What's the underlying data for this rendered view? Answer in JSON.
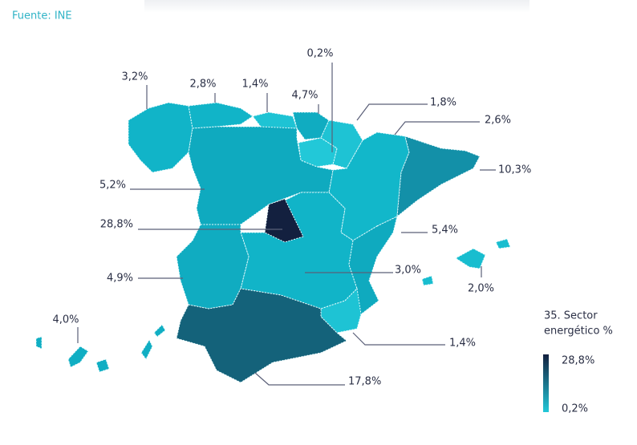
{
  "source": "Fuente: INE",
  "regions": [
    {
      "label": "3,2%",
      "color": "#11b4c8"
    },
    {
      "label": "2,8%",
      "color": "#11b4c8"
    },
    {
      "label": "1,4%",
      "color": "#1ec3d4"
    },
    {
      "label": "4,7%",
      "color": "#10acc1"
    },
    {
      "label": "0,2%",
      "color": "#22c8d8"
    },
    {
      "label": "1,8%",
      "color": "#1ec3d4"
    },
    {
      "label": "2,6%",
      "color": "#12b7ca"
    },
    {
      "label": "10,3%",
      "color": "#1390a8"
    },
    {
      "label": "5,2%",
      "color": "#0faabf"
    },
    {
      "label": "28,8%",
      "color": "#13203f"
    },
    {
      "label": "5,4%",
      "color": "#0faabf"
    },
    {
      "label": "3,0%",
      "color": "#11b4c8"
    },
    {
      "label": "2,0%",
      "color": "#18bdcf"
    },
    {
      "label": "4,9%",
      "color": "#10acc1"
    },
    {
      "label": "4,0%",
      "color": "#10aec3"
    },
    {
      "label": "1,4%",
      "color": "#1ec3d4"
    },
    {
      "label": "17,8%",
      "color": "#14627a"
    }
  ],
  "legend": {
    "title_lines": [
      "35. Sector",
      "energético %"
    ],
    "max_label": "28,8%",
    "min_label": "0,2%",
    "max_color": "#13203f",
    "min_color": "#22c8d8"
  }
}
